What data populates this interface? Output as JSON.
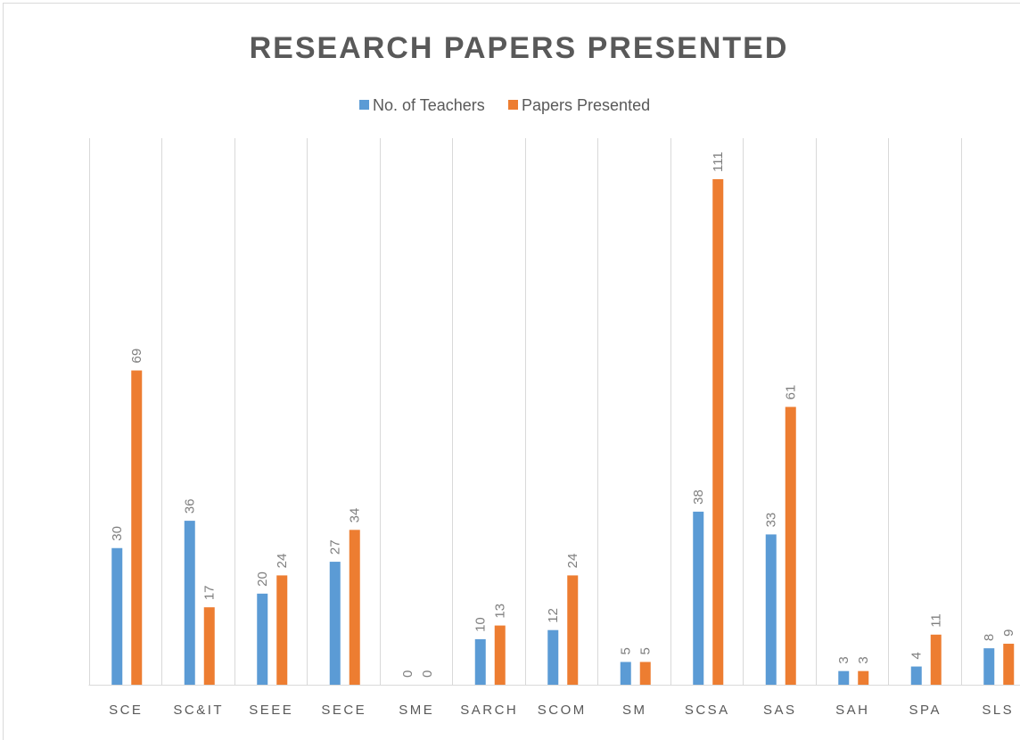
{
  "chart_data": {
    "type": "bar",
    "title": "RESEARCH PAPERS PRESENTED",
    "categories": [
      "SCE",
      "SC&IT",
      "SEEE",
      "SECE",
      "SME",
      "SARCH",
      "SCOM",
      "SM",
      "SCSA",
      "SAS",
      "SAH",
      "SPA",
      "SLS"
    ],
    "series": [
      {
        "name": "No. of Teachers",
        "color": "#5b9bd5",
        "values": [
          30,
          36,
          20,
          27,
          0,
          10,
          12,
          5,
          38,
          33,
          3,
          4,
          8
        ]
      },
      {
        "name": "Papers Presented",
        "color": "#ed7d31",
        "values": [
          69,
          17,
          24,
          34,
          0,
          13,
          24,
          5,
          111,
          61,
          3,
          11,
          9
        ]
      }
    ],
    "ylim": [
      0,
      120
    ],
    "legend": "top",
    "data_labels": true
  }
}
